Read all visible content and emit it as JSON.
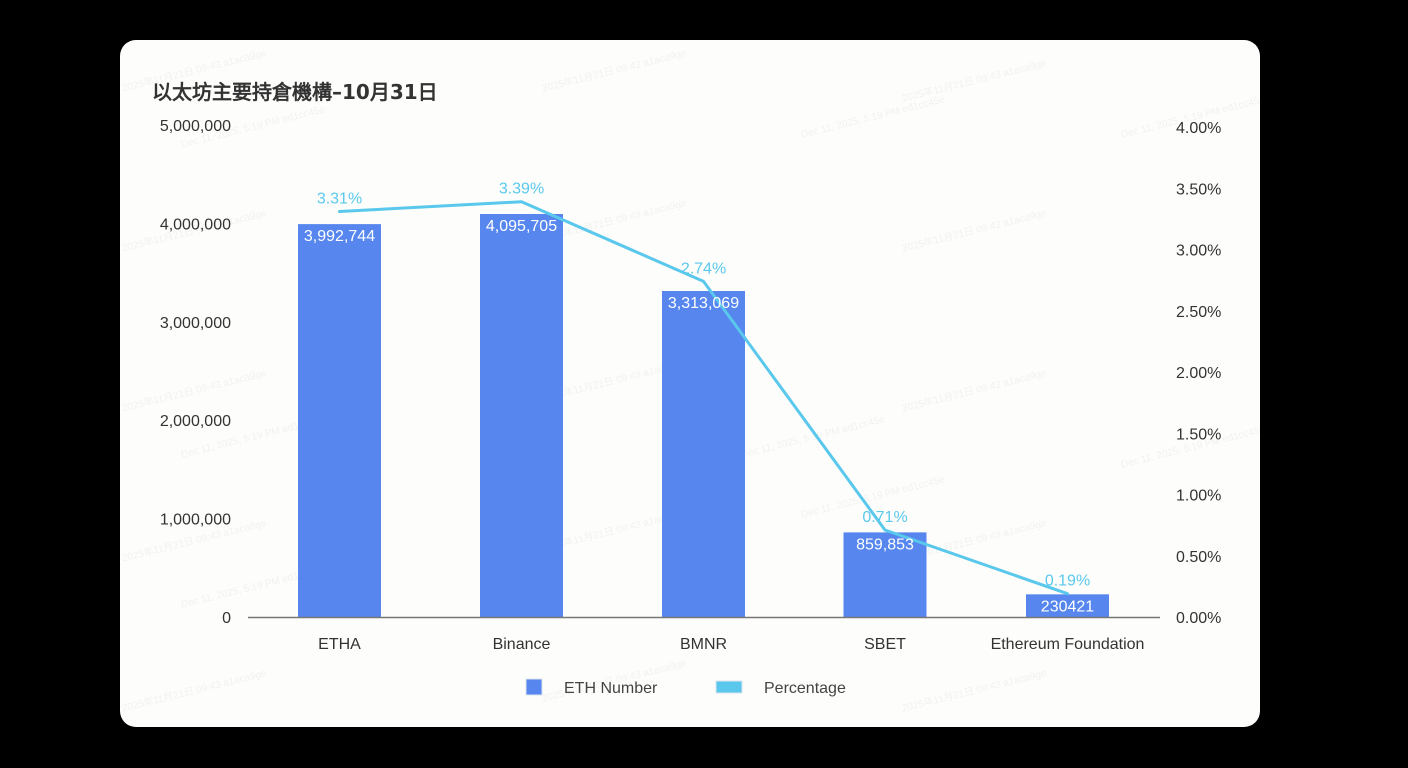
{
  "title": "以太坊主要持倉機構–10月31日",
  "colors": {
    "background": "#000000",
    "card": "#fdfdfb",
    "bar": "#5686ee",
    "line": "#5ac8ec",
    "axis_text": "#333333",
    "axis_line": "#777777"
  },
  "legend": {
    "items": [
      {
        "label": "ETH Number",
        "type": "bar",
        "color": "#5686ee"
      },
      {
        "label": "Percentage",
        "type": "line",
        "color": "#5ac8ec"
      }
    ]
  },
  "watermarks": [
    "2025年11月21日 09:43 a1aca9ge",
    "Dec 11, 2025, 5:19 PM ed1cc45e"
  ],
  "chart_data": {
    "type": "bar",
    "title": "以太坊主要持倉機構–10月31日",
    "categories": [
      "ETHA",
      "Binance",
      "BMNR",
      "SBET",
      "Ethereum Foundation"
    ],
    "series": [
      {
        "name": "ETH Number",
        "type": "bar",
        "axis": "left",
        "values": [
          3992744,
          4095705,
          3313069,
          859853,
          230421
        ],
        "labels": [
          "3,992,744",
          "4,095,705",
          "3,313,069",
          "859,853",
          "230421"
        ]
      },
      {
        "name": "Percentage",
        "type": "line",
        "axis": "right",
        "values": [
          3.31,
          3.39,
          2.74,
          0.71,
          0.19
        ],
        "labels": [
          "3.31%",
          "3.39%",
          "2.74%",
          "0.71%",
          "0.19%"
        ]
      }
    ],
    "left_axis": {
      "ylim": [
        0,
        5000000
      ],
      "ticks": [
        0,
        1000000,
        2000000,
        3000000,
        4000000,
        5000000
      ],
      "tick_labels": [
        "0",
        "1,000,000",
        "2,000,000",
        "3,000,000",
        "4,000,000",
        "5,000,000"
      ]
    },
    "right_axis": {
      "ylim": [
        0,
        4.0
      ],
      "ticks": [
        0,
        0.5,
        1.0,
        1.5,
        2.0,
        2.5,
        3.0,
        3.5,
        4.0
      ],
      "tick_labels": [
        "0.00%",
        "0.50%",
        "1.00%",
        "1.50%",
        "2.00%",
        "2.50%",
        "3.00%",
        "3.50%",
        "4.00%"
      ]
    },
    "xlabel": "",
    "ylabel": "",
    "grid": false,
    "legend_position": "bottom"
  }
}
